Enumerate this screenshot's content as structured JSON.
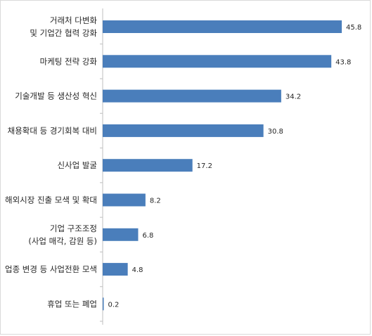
{
  "chart_data": {
    "type": "bar",
    "orientation": "horizontal",
    "title": "",
    "xlabel": "",
    "ylabel": "",
    "xlim": [
      0,
      50
    ],
    "grid": false,
    "legend": "none",
    "bar_color": "#4a7ebb",
    "categories": [
      "거래처 다변화\n및 기업간 협력 강화",
      "마케팅 전략 강화",
      "기술개발 등 생산성 혁신",
      "채용확대 등 경기회복 대비",
      "신사업 발굴",
      "해외시장 진출 모색 및 확대",
      "기업 구조조정\n(사업 매각, 감원 등)",
      "업종 변경 등 사업전환 모색",
      "휴업 또는 폐업"
    ],
    "values": [
      45.8,
      43.8,
      34.2,
      30.8,
      17.2,
      8.2,
      6.8,
      4.8,
      0.2
    ],
    "value_labels": [
      "45.8",
      "43.8",
      "34.2",
      "30.8",
      "17.2",
      "8.2",
      "6.8",
      "4.8",
      "0.2"
    ]
  }
}
